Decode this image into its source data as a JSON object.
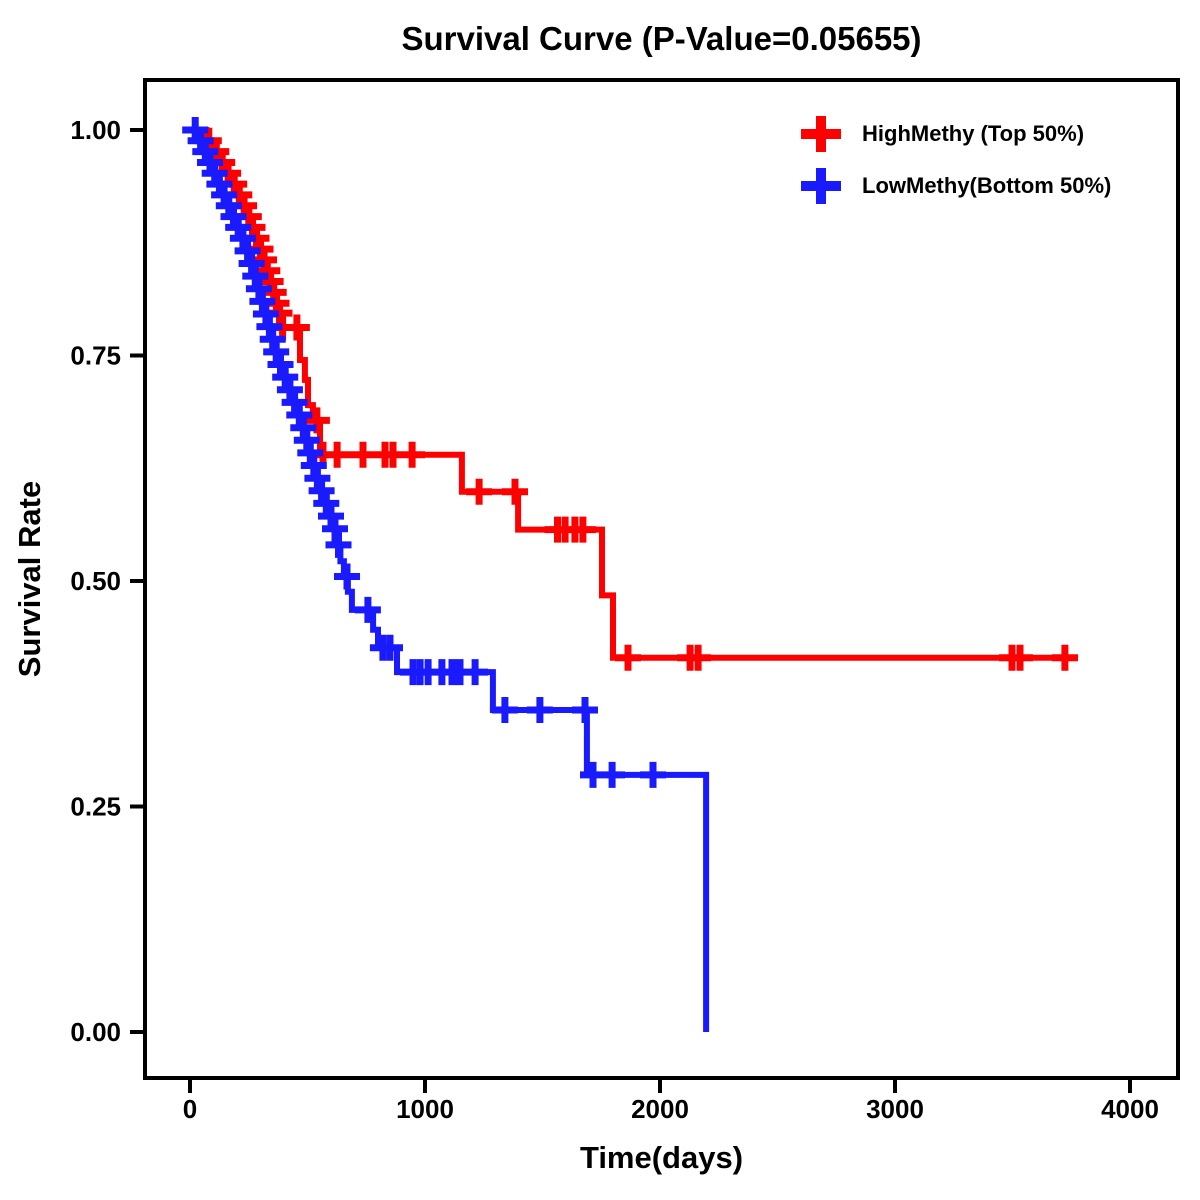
{
  "chart_data": {
    "type": "line",
    "variant": "kaplan-meier-step-curves",
    "title": "Survival Curve (P-Value=0.05655)",
    "p_value": "0.05655",
    "xlabel": "Time(days)",
    "ylabel": "Survival Rate",
    "x_ticks": [
      0,
      1000,
      2000,
      3000,
      4000
    ],
    "x_tick_labels": [
      "0",
      "1000",
      "2000",
      "3000",
      "4000"
    ],
    "y_ticks": [
      1.0,
      0.75,
      0.5,
      0.25,
      0.0
    ],
    "y_tick_labels": [
      "1.00",
      "0.75",
      "0.50",
      "0.25",
      "0.00"
    ],
    "xlim": [
      -200,
      4210
    ],
    "ylim": [
      -0.05,
      1.05
    ],
    "grid": false,
    "legend_position": "top-right",
    "axis_color": "#000000",
    "series": [
      {
        "id": "highmethy",
        "name": "HighMethy (Top 50%)",
        "color": "#FF0000",
        "end_time": 3779,
        "steps": [
          [
            0,
            1.0
          ],
          [
            70,
            0.988
          ],
          [
            100,
            0.976
          ],
          [
            125,
            0.964
          ],
          [
            150,
            0.952
          ],
          [
            175,
            0.94
          ],
          [
            200,
            0.928
          ],
          [
            220,
            0.916
          ],
          [
            240,
            0.904
          ],
          [
            258,
            0.892
          ],
          [
            275,
            0.88
          ],
          [
            292,
            0.868
          ],
          [
            308,
            0.856
          ],
          [
            322,
            0.844
          ],
          [
            336,
            0.832
          ],
          [
            350,
            0.82
          ],
          [
            362,
            0.808
          ],
          [
            375,
            0.797
          ],
          [
            390,
            0.781
          ],
          [
            468,
            0.745
          ],
          [
            489,
            0.723
          ],
          [
            502,
            0.695
          ],
          [
            523,
            0.678
          ],
          [
            553,
            0.64
          ],
          [
            1157,
            0.599
          ],
          [
            1396,
            0.557
          ],
          [
            1753,
            0.484
          ],
          [
            1800,
            0.415
          ]
        ],
        "censor_times": [
          80,
          112,
          137,
          162,
          188,
          210,
          230,
          250,
          266,
          283,
          300,
          315,
          329,
          343,
          356,
          368,
          381,
          394,
          455,
          540,
          566,
          626,
          736,
          830,
          864,
          945,
          1230,
          1383,
          1564,
          1596,
          1638,
          1672,
          1864,
          2128,
          2162,
          3498,
          3532,
          3723
        ]
      },
      {
        "id": "lowmethy",
        "name": "LowMethy(Bottom 50%)",
        "color": "#1A1AFF",
        "end_time": 2196,
        "steps": [
          [
            0,
            1.0
          ],
          [
            30,
            0.988
          ],
          [
            55,
            0.976
          ],
          [
            75,
            0.964
          ],
          [
            95,
            0.952
          ],
          [
            115,
            0.94
          ],
          [
            135,
            0.928
          ],
          [
            155,
            0.916
          ],
          [
            175,
            0.904
          ],
          [
            195,
            0.892
          ],
          [
            215,
            0.88
          ],
          [
            235,
            0.866
          ],
          [
            255,
            0.852
          ],
          [
            270,
            0.838
          ],
          [
            285,
            0.824
          ],
          [
            300,
            0.81
          ],
          [
            315,
            0.796
          ],
          [
            330,
            0.782
          ],
          [
            345,
            0.768
          ],
          [
            360,
            0.754
          ],
          [
            375,
            0.74
          ],
          [
            395,
            0.726
          ],
          [
            415,
            0.712
          ],
          [
            435,
            0.698
          ],
          [
            455,
            0.684
          ],
          [
            475,
            0.67
          ],
          [
            490,
            0.656
          ],
          [
            505,
            0.642
          ],
          [
            520,
            0.628
          ],
          [
            535,
            0.614
          ],
          [
            550,
            0.6
          ],
          [
            570,
            0.586
          ],
          [
            590,
            0.572
          ],
          [
            610,
            0.558
          ],
          [
            625,
            0.54
          ],
          [
            640,
            0.522
          ],
          [
            655,
            0.505
          ],
          [
            672,
            0.488
          ],
          [
            689,
            0.468
          ],
          [
            779,
            0.446
          ],
          [
            800,
            0.426
          ],
          [
            881,
            0.399
          ],
          [
            1289,
            0.357
          ],
          [
            1689,
            0.285
          ],
          [
            2196,
            0.0
          ]
        ],
        "censor_times": [
          22,
          45,
          65,
          85,
          105,
          125,
          145,
          165,
          185,
          205,
          225,
          245,
          262,
          278,
          293,
          308,
          323,
          338,
          352,
          367,
          385,
          405,
          425,
          445,
          465,
          482,
          497,
          512,
          527,
          542,
          560,
          580,
          600,
          617,
          632,
          668,
          757,
          821,
          851,
          949,
          979,
          1013,
          1072,
          1115,
          1136,
          1149,
          1213,
          1340,
          1489,
          1681,
          1715,
          1796,
          1970
        ]
      }
    ]
  }
}
